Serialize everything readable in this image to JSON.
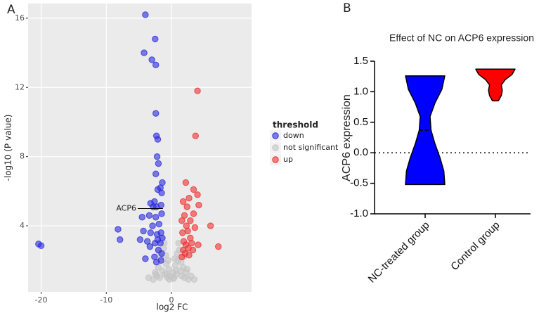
{
  "chart_data": [
    {
      "type": "scatter",
      "label": "A",
      "xlabel": "log2 FC",
      "ylabel": "-log10 (P value)",
      "xlim": [
        -22,
        12.3
      ],
      "ylim": [
        0.18,
        16.85
      ],
      "xticks": [
        -20,
        -10,
        0
      ],
      "yticks": [
        4,
        8,
        12,
        16
      ],
      "grid": true,
      "legend_title": "threshold",
      "series": [
        {
          "name": "down",
          "color": "#2b2bdd",
          "x": [
            -20.4,
            -20.0,
            -8.2,
            -7.9,
            -4.0,
            -2.5,
            -4.2,
            -3.0,
            -2.4,
            -2.4,
            -2.3,
            -2.1,
            -2.2,
            -2.0,
            -2.4,
            -1.4,
            -1.7,
            -1.5,
            -3.2,
            -2.6,
            -2.1,
            -2.8,
            -2.3,
            -1.6,
            -4.5,
            -3.4,
            -2.4,
            -1.5,
            -2.9,
            -1.9,
            -4.3,
            -3.2,
            -2.2,
            -1.6,
            -4.8,
            -3.7,
            -2.5,
            -2.1,
            -1.7,
            -1.4,
            -3.3,
            -2.0,
            -1.5,
            -2.6,
            -4.0,
            -1.6,
            -2.3
          ],
          "y": [
            2.95,
            2.85,
            3.8,
            3.2,
            16.2,
            14.8,
            14.0,
            13.6,
            13.3,
            10.5,
            9.2,
            9.0,
            8.0,
            7.6,
            7.0,
            6.5,
            6.2,
            5.9,
            5.3,
            5.4,
            6.1,
            5.1,
            5.1,
            5.2,
            4.5,
            4.6,
            4.5,
            4.7,
            4.0,
            4.1,
            3.7,
            3.6,
            3.5,
            3.6,
            3.2,
            3.1,
            3.0,
            3.2,
            3.0,
            3.3,
            2.8,
            2.6,
            2.4,
            2.2,
            2.1,
            2.0,
            1.9
          ]
        },
        {
          "name": "not significant",
          "color": "#c4c4c4",
          "x": [
            -2.8,
            -2.5,
            -2.2,
            -2.0,
            -1.8,
            -1.6,
            -1.4,
            -1.2,
            -1.0,
            -0.8,
            -0.6,
            -0.4,
            -0.2,
            0.2,
            0.4,
            0.6,
            0.8,
            1.0,
            1.2,
            1.4,
            1.6,
            1.8,
            2.0,
            2.3,
            2.6,
            3.0,
            -1.1,
            -0.9,
            -0.5,
            0.5,
            0.9,
            1.1,
            1.5,
            -1.5,
            -0.7,
            0.7,
            -3.5,
            3.5,
            -1.9,
            1.9,
            -0.3,
            0.3,
            -2.4,
            2.4
          ],
          "y": [
            0.9,
            1.3,
            1.1,
            1.6,
            1.0,
            2.2,
            1.4,
            2.7,
            1.2,
            1.8,
            1.0,
            1.5,
            1.1,
            1.3,
            1.0,
            1.7,
            1.2,
            2.0,
            2.6,
            1.4,
            1.1,
            1.6,
            1.0,
            1.3,
            0.9,
            1.1,
            3.0,
            2.3,
            2.0,
            2.1,
            2.4,
            3.0,
            1.9,
            3.2,
            1.2,
            1.4,
            1.0,
            0.9,
            2.5,
            2.2,
            0.9,
            0.95,
            1.2,
            1.5
          ]
        },
        {
          "name": "up",
          "color": "#ee3030",
          "x": [
            4.0,
            3.7,
            2.2,
            3.4,
            2.7,
            4.0,
            1.8,
            2.4,
            4.2,
            3.4,
            2.0,
            2.9,
            1.6,
            2.3,
            3.6,
            6.0,
            1.7,
            2.5,
            2.9,
            1.9,
            3.1,
            2.2,
            4.1,
            7.2,
            2.6,
            1.8,
            3.3,
            2.1,
            2.7,
            1.6
          ],
          "y": [
            11.8,
            9.2,
            6.5,
            6.1,
            5.6,
            5.8,
            5.4,
            5.1,
            5.2,
            4.7,
            4.6,
            4.3,
            4.3,
            4.0,
            3.9,
            4.0,
            3.6,
            3.7,
            3.3,
            3.1,
            3.0,
            2.9,
            2.9,
            2.8,
            2.7,
            2.6,
            2.6,
            2.4,
            2.3,
            2.2
          ]
        }
      ],
      "annotations": [
        {
          "text": "ACP6",
          "x": -1.3,
          "y": 5.0
        }
      ]
    },
    {
      "type": "violin",
      "label": "B",
      "title": "Effect of NC on ACP6 expression",
      "ylabel": "ACP6 expression",
      "ylim": [
        -1,
        1.5
      ],
      "yticks": [
        {
          "value": -1,
          "label": "-1.0"
        },
        -0.5,
        {
          "value": 0,
          "label": "0.0"
        },
        0.5,
        {
          "value": 1,
          "label": "1.0"
        },
        1.5
      ],
      "hline": 0,
      "categories": [
        "NC-treated group",
        "Control group"
      ],
      "violins": [
        {
          "color": "#0000ff",
          "min": -0.52,
          "max": 1.26,
          "median": 0.37,
          "density": [
            1.0,
            0.95,
            0.75,
            0.5,
            0.3,
            0.25,
            0.5,
            0.85,
            1.0
          ]
        },
        {
          "color": "#ff0000",
          "min": 0.85,
          "max": 1.37,
          "median": 1.37,
          "density": [
            0.15,
            0.3,
            0.35,
            0.3,
            0.5,
            0.85,
            1.0
          ]
        }
      ]
    }
  ]
}
